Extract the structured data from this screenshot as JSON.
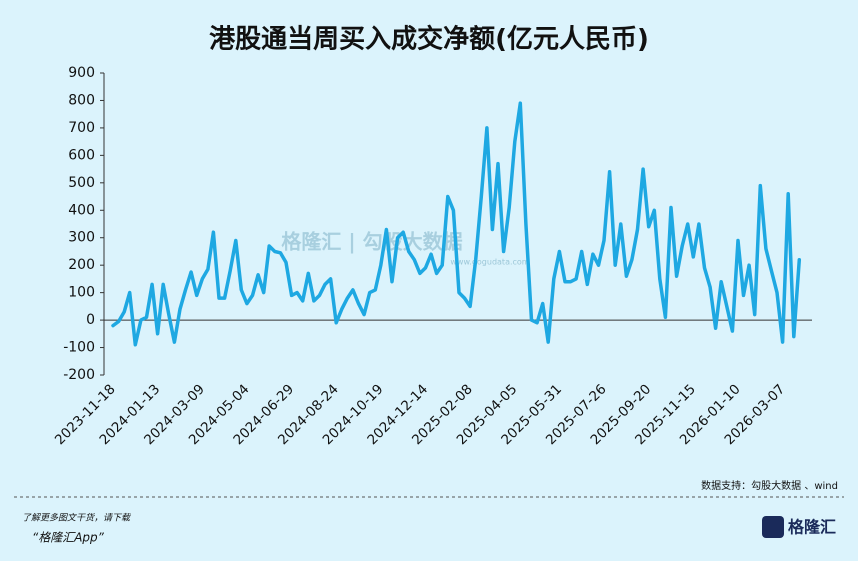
{
  "chart_data": {
    "type": "line",
    "title": "港股通当周买入成交净额(亿元人民币)",
    "categories": [
      "2023-11-18",
      null,
      null,
      null,
      null,
      null,
      null,
      null,
      "2024-01-13",
      null,
      null,
      null,
      null,
      null,
      null,
      null,
      "2024-03-09",
      null,
      null,
      null,
      null,
      null,
      null,
      null,
      "2024-05-04",
      null,
      null,
      null,
      null,
      null,
      null,
      null,
      "2024-06-29",
      null,
      null,
      null,
      null,
      null,
      null,
      null,
      "2024-08-24",
      null,
      null,
      null,
      null,
      null,
      null,
      null,
      "2024-10-19",
      null,
      null,
      null,
      null,
      null,
      null,
      null,
      "2024-12-14",
      null,
      null,
      null,
      null,
      null,
      null,
      null,
      "2025-02-08",
      null,
      null,
      null,
      null,
      null,
      null,
      null,
      "2025-04-05",
      null,
      null,
      null,
      null,
      null,
      null,
      null,
      "2025-05-31",
      null,
      null,
      null,
      null,
      null,
      null,
      null,
      "2025-07-26",
      null,
      null,
      null,
      null,
      null,
      null,
      null,
      "2025-09-20",
      null,
      null,
      null,
      null,
      null,
      null,
      null,
      "2025-11-15",
      null,
      null,
      null,
      null,
      null,
      null,
      null,
      "2026-01-10",
      null,
      null,
      null,
      null,
      null,
      null,
      null,
      "2026-03-07",
      null,
      null,
      null
    ],
    "values": [
      -20,
      -5,
      30,
      100,
      -90,
      0,
      10,
      130,
      -50,
      130,
      20,
      -80,
      40,
      110,
      175,
      90,
      150,
      185,
      320,
      80,
      80,
      180,
      290,
      110,
      60,
      90,
      165,
      100,
      270,
      250,
      245,
      210,
      90,
      100,
      70,
      170,
      70,
      90,
      130,
      150,
      -10,
      40,
      80,
      110,
      60,
      20,
      100,
      110,
      200,
      330,
      140,
      300,
      320,
      250,
      220,
      170,
      190,
      240,
      170,
      200,
      450,
      400,
      100,
      80,
      50,
      220,
      450,
      700,
      330,
      570,
      250,
      410,
      650,
      790,
      350,
      0,
      -10,
      60,
      -80,
      150,
      250,
      140,
      140,
      150,
      250,
      130,
      240,
      200,
      290,
      540,
      200,
      350,
      160,
      220,
      330,
      550,
      340,
      400,
      150,
      10,
      410,
      160,
      270,
      350,
      230,
      350,
      190,
      120,
      -30,
      140,
      50,
      -40,
      290,
      90,
      200,
      20,
      490,
      260,
      180,
      100,
      -80,
      460,
      -60,
      220
    ],
    "color": "#1ea8e2",
    "ylim": [
      -200,
      900
    ],
    "yticks": [
      -200,
      -100,
      0,
      100,
      200,
      300,
      400,
      500,
      600,
      700,
      800,
      900
    ],
    "source": "数据支持：勾股大数据 、wind",
    "watermark": "格隆汇 | 勾股大数据",
    "watermark_url": "www.gogudata.com"
  },
  "footer": {
    "line1": "了解更多图文干货，请下载",
    "line2": "“格隆汇App”",
    "logo": "格隆汇"
  }
}
